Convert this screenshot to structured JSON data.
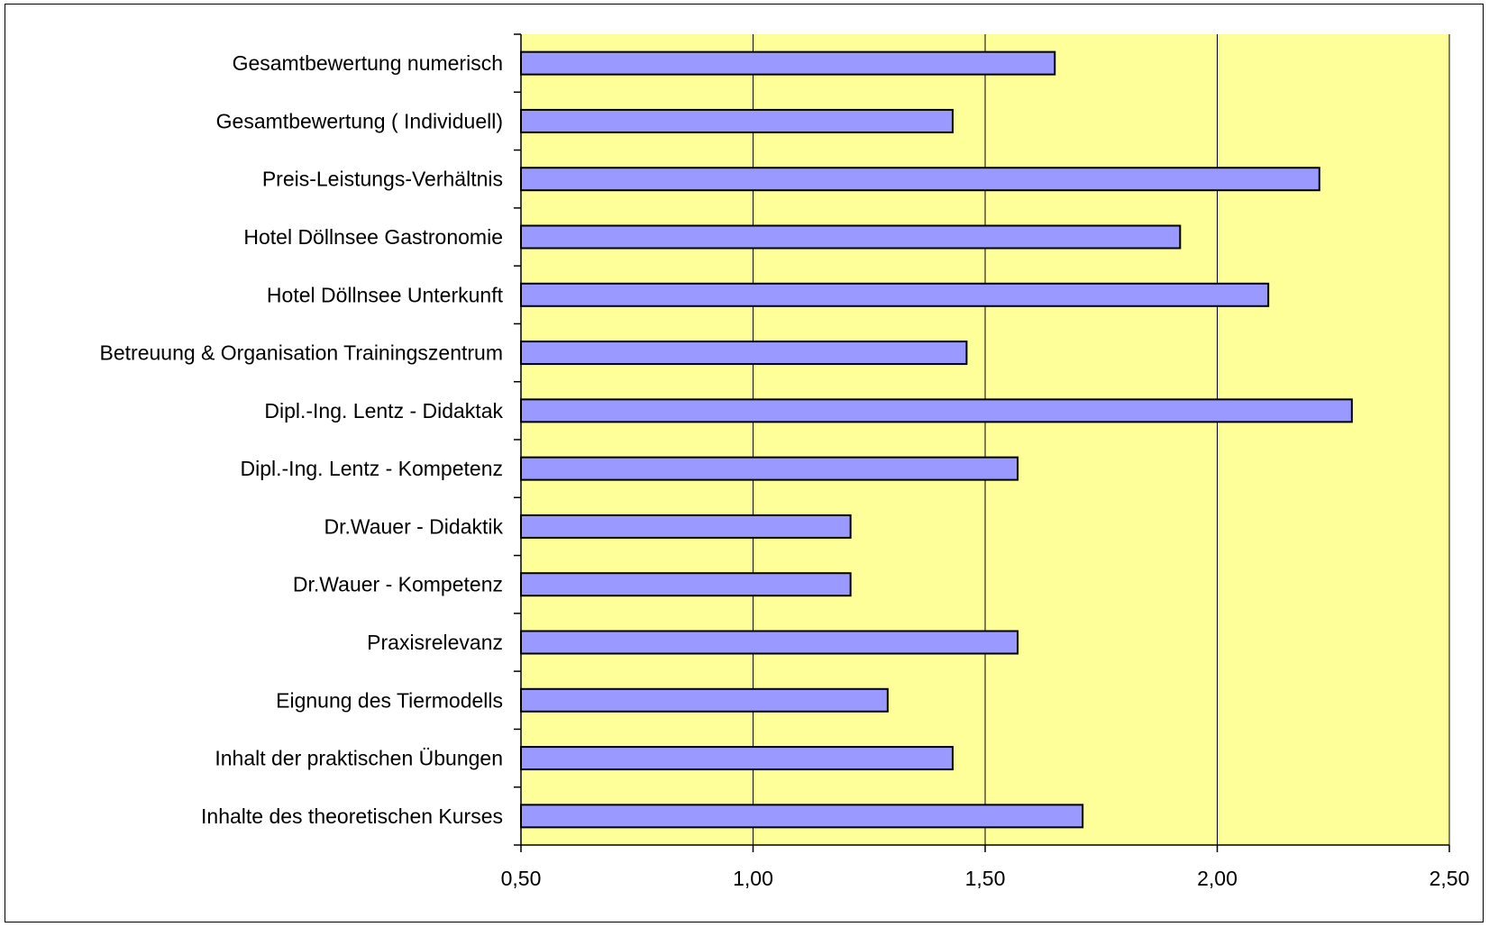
{
  "chart_data": {
    "type": "bar",
    "orientation": "horizontal",
    "title": "",
    "xlabel": "",
    "ylabel": "",
    "categories": [
      "Gesamtbewertung numerisch ",
      "Gesamtbewertung ( Individuell)",
      "Preis-Leistungs-Verhältnis",
      "Hotel Döllnsee Gastronomie",
      "Hotel Döllnsee Unterkunft",
      "Betreuung & Organisation Trainingszentrum",
      "Dipl.-Ing. Lentz - Didaktak",
      "Dipl.-Ing. Lentz - Kompetenz",
      "Dr.Wauer  - Didaktik ",
      "Dr.Wauer - Kompetenz ",
      "Praxisrelevanz",
      "Eignung des Tiermodells",
      "Inhalt der praktischen Übungen",
      "Inhalte des theoretischen Kurses"
    ],
    "values": [
      1.65,
      1.43,
      2.22,
      1.92,
      2.11,
      1.46,
      2.29,
      1.57,
      1.21,
      1.21,
      1.57,
      1.29,
      1.43,
      1.71
    ],
    "xlim": [
      0.5,
      2.5
    ],
    "xticks": [
      "0,50",
      "1,00",
      "1,50",
      "2,00",
      "2,50"
    ],
    "xtick_values": [
      0.5,
      1.0,
      1.5,
      2.0,
      2.5
    ],
    "grid": "vertical major gridlines",
    "legend": "none",
    "colors": {
      "bar_fill": "#9999FF",
      "bar_stroke": "#000000",
      "plot_background": "#FFFF99",
      "gridline": "#000000",
      "frame": "#000000"
    }
  }
}
